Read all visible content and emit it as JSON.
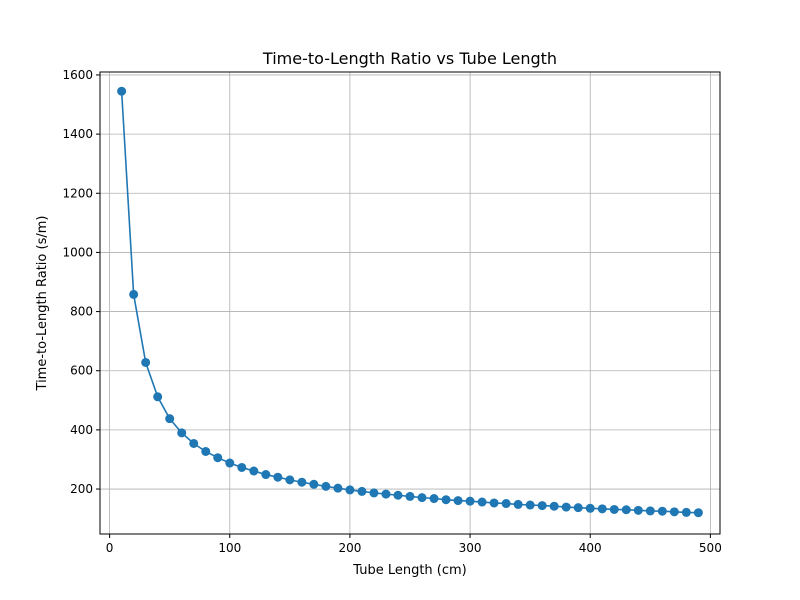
{
  "chart_data": {
    "type": "line",
    "title": "Time-to-Length Ratio vs Tube Length",
    "xlabel": "Tube Length (cm)",
    "ylabel": "Time-to-Length Ratio (s/m)",
    "xlim": [
      -8,
      508
    ],
    "ylim": [
      48,
      1610
    ],
    "xticks": [
      0,
      100,
      200,
      300,
      400,
      500
    ],
    "yticks": [
      200,
      400,
      600,
      800,
      1000,
      1200,
      1400,
      1600
    ],
    "grid": true,
    "color": "#1f77b4",
    "marker": "circle",
    "x": [
      10,
      20,
      30,
      40,
      50,
      60,
      70,
      80,
      90,
      100,
      110,
      120,
      130,
      140,
      150,
      160,
      170,
      180,
      190,
      200,
      210,
      220,
      230,
      240,
      250,
      260,
      270,
      280,
      290,
      300,
      310,
      320,
      330,
      340,
      350,
      360,
      370,
      380,
      390,
      400,
      410,
      420,
      430,
      440,
      450,
      460,
      470,
      480,
      490
    ],
    "y": [
      1545,
      858,
      628,
      512,
      438,
      390,
      354,
      327,
      306,
      288,
      273,
      261,
      249,
      240,
      231,
      223,
      216,
      209,
      203,
      197,
      192,
      187,
      183,
      179,
      175,
      171,
      168,
      164,
      161,
      159,
      156,
      153,
      151,
      148,
      146,
      144,
      142,
      139,
      137,
      135,
      133,
      131,
      130,
      128,
      126,
      125,
      123,
      121,
      120
    ]
  }
}
